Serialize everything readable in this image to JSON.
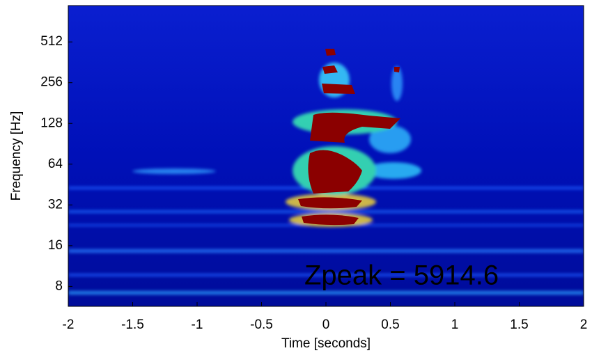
{
  "chart_data": {
    "type": "spectrogram",
    "xlabel": "Time [seconds]",
    "ylabel": "Frequency [Hz]",
    "xlim": [
      -2,
      2
    ],
    "xticks": [
      -2,
      -1.5,
      -1,
      -0.5,
      0,
      0.5,
      1,
      1.5,
      2
    ],
    "ylim": [
      5.7,
      950
    ],
    "yticks": [
      8,
      16,
      32,
      64,
      128,
      256,
      512
    ],
    "log_y": true,
    "annotation": "Zpeak = 5914.6",
    "annotation_color": "#ffff00"
  }
}
